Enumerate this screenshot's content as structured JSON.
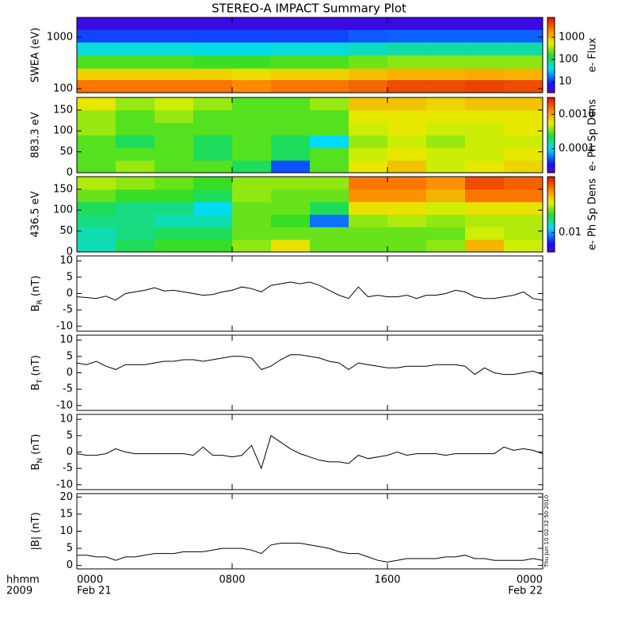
{
  "chart_data": [
    {
      "type": "heatmap",
      "title": "STEREO-A IMPACT Summary Plot",
      "ylabel": "SWEA (eV)",
      "ylog": true,
      "ylim": [
        84,
        2400
      ],
      "yticks": [
        100,
        1000
      ],
      "xlim": [
        0,
        24
      ],
      "bins": [
        0,
        2,
        4,
        6,
        8,
        10,
        12,
        14,
        16,
        18,
        20,
        22,
        24
      ],
      "y_bins": [
        84,
        150,
        250,
        450,
        800,
        1400,
        2400
      ],
      "values": [
        [
          2500,
          2500,
          2500,
          2500,
          2000,
          2500,
          2500,
          3000,
          4000,
          4000,
          4500,
          4000
        ],
        [
          800,
          800,
          800,
          800,
          700,
          800,
          800,
          1000,
          1200,
          1200,
          1300,
          1200
        ],
        [
          200,
          200,
          200,
          180,
          180,
          200,
          200,
          250,
          300,
          300,
          300,
          300
        ],
        [
          50,
          50,
          50,
          45,
          45,
          50,
          50,
          60,
          70,
          70,
          70,
          70
        ],
        [
          12,
          12,
          12,
          12,
          12,
          12,
          12,
          14,
          15,
          15,
          15,
          15
        ],
        [
          5,
          5,
          5,
          5,
          5,
          5,
          5,
          5,
          5,
          5,
          5,
          5
        ]
      ],
      "colorbar_label": "e- Flux",
      "clim": [
        3.2,
        7800
      ],
      "clog": true,
      "cticks": [
        10,
        100,
        1000
      ]
    },
    {
      "type": "heatmap",
      "ylabel": "883.3 eV",
      "ylog": false,
      "ylim": [
        0,
        180
      ],
      "yticks": [
        0,
        50,
        100,
        150
      ],
      "xlim": [
        0,
        24
      ],
      "bins": [
        0,
        2,
        4,
        6,
        8,
        10,
        12,
        14,
        16,
        18,
        20,
        22,
        24
      ],
      "y_bins": [
        0,
        30,
        60,
        90,
        120,
        150,
        180
      ],
      "values": [
        [
          0.0003,
          0.0004,
          0.0003,
          0.0003,
          0.0002,
          5e-05,
          0.0003,
          0.0006,
          0.0008,
          0.0005,
          0.0006,
          0.0007
        ],
        [
          0.0003,
          0.0003,
          0.0003,
          0.0002,
          0.0003,
          0.0002,
          0.0003,
          0.0005,
          0.0006,
          0.0005,
          0.0005,
          0.0006
        ],
        [
          0.0003,
          0.0002,
          0.0003,
          0.0002,
          0.0003,
          0.0002,
          0.0001,
          0.0004,
          0.0005,
          0.0004,
          0.0005,
          0.0005
        ],
        [
          0.0004,
          0.0003,
          0.0003,
          0.0003,
          0.0003,
          0.0003,
          0.0003,
          0.0005,
          0.0006,
          0.0005,
          0.0005,
          0.0006
        ],
        [
          0.0004,
          0.0003,
          0.0004,
          0.0003,
          0.0003,
          0.0003,
          0.0003,
          0.0006,
          0.0006,
          0.0006,
          0.0006,
          0.0006
        ],
        [
          0.0006,
          0.0004,
          0.0005,
          0.0004,
          0.0003,
          0.0003,
          0.0004,
          0.0008,
          0.0008,
          0.0007,
          0.0008,
          0.0008
        ]
      ],
      "colorbar_label": "e- Ph Sp Dens",
      "clim": [
        2e-05,
        0.0031
      ],
      "clog": true,
      "cticks": [
        0.0001,
        {
          "value": 0.001,
          "label": "0.0010"
        }
      ]
    },
    {
      "type": "heatmap",
      "ylabel": "436.5 eV",
      "ylog": false,
      "ylim": [
        0,
        180
      ],
      "yticks": [
        0,
        50,
        100,
        150
      ],
      "xlim": [
        0,
        24
      ],
      "bins": [
        0,
        2,
        4,
        6,
        8,
        10,
        12,
        14,
        16,
        18,
        20,
        22,
        24
      ],
      "y_bins": [
        0,
        30,
        60,
        90,
        120,
        150,
        180
      ],
      "values": [
        [
          0.02,
          0.03,
          0.04,
          0.04,
          0.06,
          0.1,
          0.05,
          0.05,
          0.05,
          0.06,
          0.15,
          0.08
        ],
        [
          0.02,
          0.025,
          0.03,
          0.03,
          0.05,
          0.05,
          0.05,
          0.05,
          0.05,
          0.05,
          0.08,
          0.07
        ],
        [
          0.025,
          0.025,
          0.02,
          0.02,
          0.05,
          0.04,
          0.008,
          0.06,
          0.07,
          0.06,
          0.07,
          0.07
        ],
        [
          0.03,
          0.025,
          0.025,
          0.015,
          0.05,
          0.05,
          0.03,
          0.1,
          0.1,
          0.08,
          0.1,
          0.1
        ],
        [
          0.05,
          0.04,
          0.04,
          0.03,
          0.06,
          0.05,
          0.05,
          0.2,
          0.2,
          0.15,
          0.25,
          0.25
        ],
        [
          0.07,
          0.06,
          0.05,
          0.04,
          0.06,
          0.06,
          0.06,
          0.25,
          0.25,
          0.2,
          0.35,
          0.3
        ]
      ],
      "colorbar_label": "e- Ph Sp Dens",
      "clim": [
        0.0025,
        0.56
      ],
      "clog": true,
      "cticks": [
        0.01
      ]
    },
    {
      "type": "line",
      "ylabel": {
        "main": "B",
        "sub": "R",
        "unit": "(nT)"
      },
      "color": "#000000",
      "xlim": [
        0,
        24
      ],
      "ylim": [
        -11.5,
        11.5
      ],
      "yticks": [
        -10,
        -5,
        0,
        5,
        10
      ],
      "x": [
        0,
        0.5,
        1,
        1.5,
        2,
        2.5,
        3,
        3.5,
        4,
        4.5,
        5,
        5.5,
        6,
        6.5,
        7,
        7.5,
        8,
        8.5,
        9,
        9.5,
        10,
        10.5,
        11,
        11.5,
        12,
        12.5,
        13,
        13.5,
        14,
        14.5,
        15,
        15.5,
        16,
        16.5,
        17,
        17.5,
        18,
        18.5,
        19,
        19.5,
        20,
        20.5,
        21,
        21.5,
        22,
        22.5,
        23,
        23.5,
        24
      ],
      "values": [
        -1,
        -1.2,
        -1.5,
        -0.8,
        -2,
        0,
        0.5,
        1,
        1.8,
        0.8,
        1,
        0.5,
        0,
        -0.5,
        -0.3,
        0.5,
        1,
        2,
        1.5,
        0.5,
        2.5,
        3,
        3.5,
        3,
        3.5,
        2.5,
        1,
        -0.5,
        -1.5,
        2,
        -1,
        -0.5,
        -1,
        -1,
        -0.5,
        -1.5,
        -0.5,
        -0.5,
        0,
        1,
        0.5,
        -1,
        -1.5,
        -1.5,
        -1,
        -0.5,
        0.5,
        -1.5,
        -2
      ]
    },
    {
      "type": "line",
      "ylabel": {
        "main": "B",
        "sub": "T",
        "unit": "(nT)"
      },
      "color": "#000000",
      "xlim": [
        0,
        24
      ],
      "ylim": [
        -11.5,
        11.5
      ],
      "yticks": [
        -10,
        -5,
        0,
        5,
        10
      ],
      "x": [
        0,
        0.5,
        1,
        1.5,
        2,
        2.5,
        3,
        3.5,
        4,
        4.5,
        5,
        5.5,
        6,
        6.5,
        7,
        7.5,
        8,
        8.5,
        9,
        9.5,
        10,
        10.5,
        11,
        11.5,
        12,
        12.5,
        13,
        13.5,
        14,
        14.5,
        15,
        15.5,
        16,
        16.5,
        17,
        17.5,
        18,
        18.5,
        19,
        19.5,
        20,
        20.5,
        21,
        21.5,
        22,
        22.5,
        23,
        23.5,
        24
      ],
      "values": [
        3,
        2.5,
        3.5,
        2,
        1,
        2.5,
        2.5,
        2.5,
        3,
        3.5,
        3.5,
        4,
        4,
        3.5,
        4,
        4.5,
        5,
        5,
        4.5,
        1,
        2,
        4,
        5.5,
        5.5,
        5,
        4.5,
        3.5,
        3,
        1,
        3,
        2.5,
        2,
        1.5,
        1.5,
        2,
        2,
        2,
        2.5,
        2.5,
        2.5,
        2,
        -0.5,
        1.5,
        0,
        -0.5,
        -0.5,
        0,
        0.5,
        -0.5
      ]
    },
    {
      "type": "line",
      "ylabel": {
        "main": "B",
        "sub": "N",
        "unit": "(nT)"
      },
      "color": "#000000",
      "xlim": [
        0,
        24
      ],
      "ylim": [
        -11.5,
        11.5
      ],
      "yticks": [
        -10,
        -5,
        0,
        5,
        10
      ],
      "x": [
        0,
        0.5,
        1,
        1.5,
        2,
        2.5,
        3,
        3.5,
        4,
        4.5,
        5,
        5.5,
        6,
        6.5,
        7,
        7.5,
        8,
        8.5,
        9,
        9.5,
        10,
        10.5,
        11,
        11.5,
        12,
        12.5,
        13,
        13.5,
        14,
        14.5,
        15,
        15.5,
        16,
        16.5,
        17,
        17.5,
        18,
        18.5,
        19,
        19.5,
        20,
        20.5,
        21,
        21.5,
        22,
        22.5,
        23,
        23.5,
        24
      ],
      "values": [
        -0.5,
        -1,
        -1,
        -0.5,
        1,
        0,
        -0.5,
        -0.5,
        -0.5,
        -0.5,
        -0.5,
        -0.5,
        -1,
        1.5,
        -1,
        -1,
        -1.5,
        -1,
        2,
        -5,
        5,
        3,
        1,
        -0.5,
        -1.5,
        -2.5,
        -3,
        -3,
        -3.5,
        -1,
        -2,
        -1.5,
        -1,
        0,
        -1,
        -0.5,
        -0.5,
        -0.5,
        -1,
        -0.5,
        -0.5,
        -0.5,
        -0.5,
        -0.5,
        1.5,
        0.5,
        1,
        0.5,
        -0.5
      ]
    },
    {
      "type": "line",
      "ylabel": {
        "main": "|B|",
        "unit": "(nT)"
      },
      "color": "#000000",
      "xlim": [
        0,
        24
      ],
      "ylim": [
        -1,
        21
      ],
      "yticks": [
        0,
        5,
        10,
        15,
        20
      ],
      "x": [
        0,
        0.5,
        1,
        1.5,
        2,
        2.5,
        3,
        3.5,
        4,
        4.5,
        5,
        5.5,
        6,
        6.5,
        7,
        7.5,
        8,
        8.5,
        9,
        9.5,
        10,
        10.5,
        11,
        11.5,
        12,
        12.5,
        13,
        13.5,
        14,
        14.5,
        15,
        15.5,
        16,
        16.5,
        17,
        17.5,
        18,
        18.5,
        19,
        19.5,
        20,
        20.5,
        21,
        21.5,
        22,
        22.5,
        23,
        23.5,
        24
      ],
      "values": [
        3,
        3,
        2.5,
        2.5,
        1.5,
        2.5,
        2.5,
        3,
        3.5,
        3.5,
        3.5,
        4,
        4,
        4,
        4.5,
        5,
        5,
        5,
        4.5,
        3.5,
        6,
        6.5,
        6.5,
        6.5,
        6,
        5.5,
        5,
        4,
        3.5,
        3.5,
        2.5,
        1.5,
        1,
        1.5,
        2,
        2,
        2,
        2,
        2.5,
        2.5,
        3,
        2,
        2,
        1.5,
        1.5,
        1.5,
        1.5,
        2,
        1.5
      ],
      "xticks": [
        {
          "value": 0,
          "label": "0000"
        },
        {
          "value": 8,
          "label": "0800"
        },
        {
          "value": 16,
          "label": "1600"
        },
        {
          "value": 24,
          "label": "0000"
        }
      ],
      "xtick_dates": [
        {
          "value": 0,
          "label": "Feb 21"
        },
        {
          "value": 24,
          "label": "Feb 22"
        }
      ],
      "xlabel": "hhmm",
      "xlabel_year": "2009",
      "timestamp": "Thu Jun 10 02:32:50 2010"
    }
  ]
}
